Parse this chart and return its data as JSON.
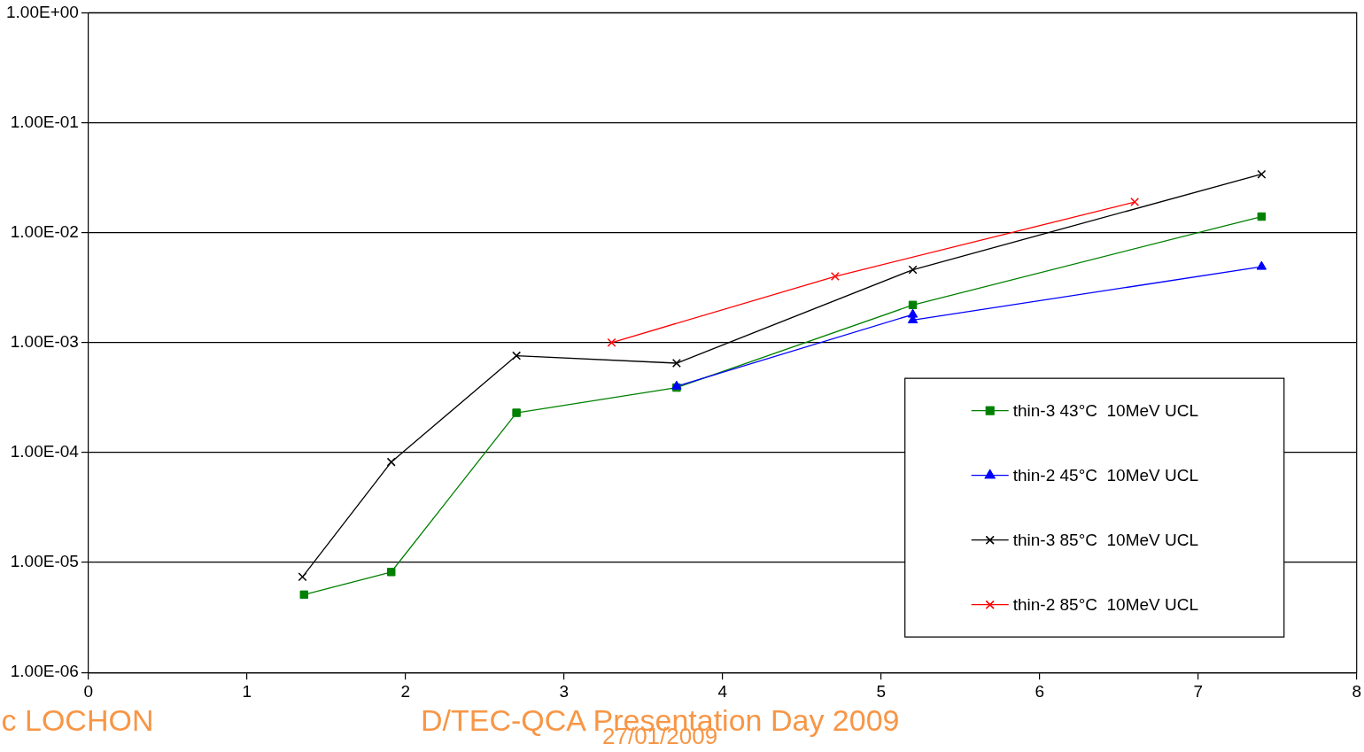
{
  "chart_data": {
    "type": "line",
    "series": [
      {
        "name": "thin-3 43°C  10MeV UCL",
        "color": "#008000",
        "marker": "square",
        "x": [
          1.36,
          1.91,
          2.7,
          3.71,
          5.2,
          7.4
        ],
        "values": [
          5.1e-06,
          8.2e-06,
          0.00023,
          0.00039,
          0.0022,
          0.014
        ]
      },
      {
        "name": "thin-2 45°C  10MeV UCL",
        "color": "#0000ff",
        "marker": "triangle",
        "x": [
          3.71,
          5.2,
          5.2,
          7.4
        ],
        "values": [
          0.0004,
          0.0018,
          0.0016,
          0.0049
        ]
      },
      {
        "name": "thin-3 85°C  10MeV UCL",
        "color": "#000000",
        "marker": "cross",
        "x": [
          1.35,
          1.91,
          2.7,
          3.71,
          5.2,
          7.4
        ],
        "values": [
          7.4e-06,
          8.2e-05,
          0.00076,
          0.00065,
          0.0046,
          0.034
        ]
      },
      {
        "name": "thin-2 85°C  10MeV UCL",
        "color": "#ff0000",
        "marker": "cross",
        "x": [
          3.3,
          4.71,
          6.6
        ],
        "values": [
          0.001,
          0.004,
          0.019
        ]
      }
    ],
    "log": "y",
    "xlim": [
      0,
      8
    ],
    "xticks": [
      0,
      1,
      2,
      3,
      4,
      5,
      6,
      7,
      8
    ],
    "ylim": [
      1e-06,
      1
    ],
    "yticks": [
      {
        "value": 1e-06,
        "label": "1.00E-06"
      },
      {
        "value": 1e-05,
        "label": "1.00E-05"
      },
      {
        "value": 0.0001,
        "label": "1.00E-04"
      },
      {
        "value": 0.001,
        "label": "1.00E-03"
      },
      {
        "value": 0.01,
        "label": "1.00E-02"
      },
      {
        "value": 0.1,
        "label": "1.00E-01"
      },
      {
        "value": 1,
        "label": "1.00E+00"
      }
    ],
    "grid": "y",
    "legend": "bottom right",
    "line_style": "solid",
    "annotations": [
      "ic LOCHON",
      "D/TEC-QCA Presentation Day 2009",
      "27/01/2009"
    ]
  }
}
